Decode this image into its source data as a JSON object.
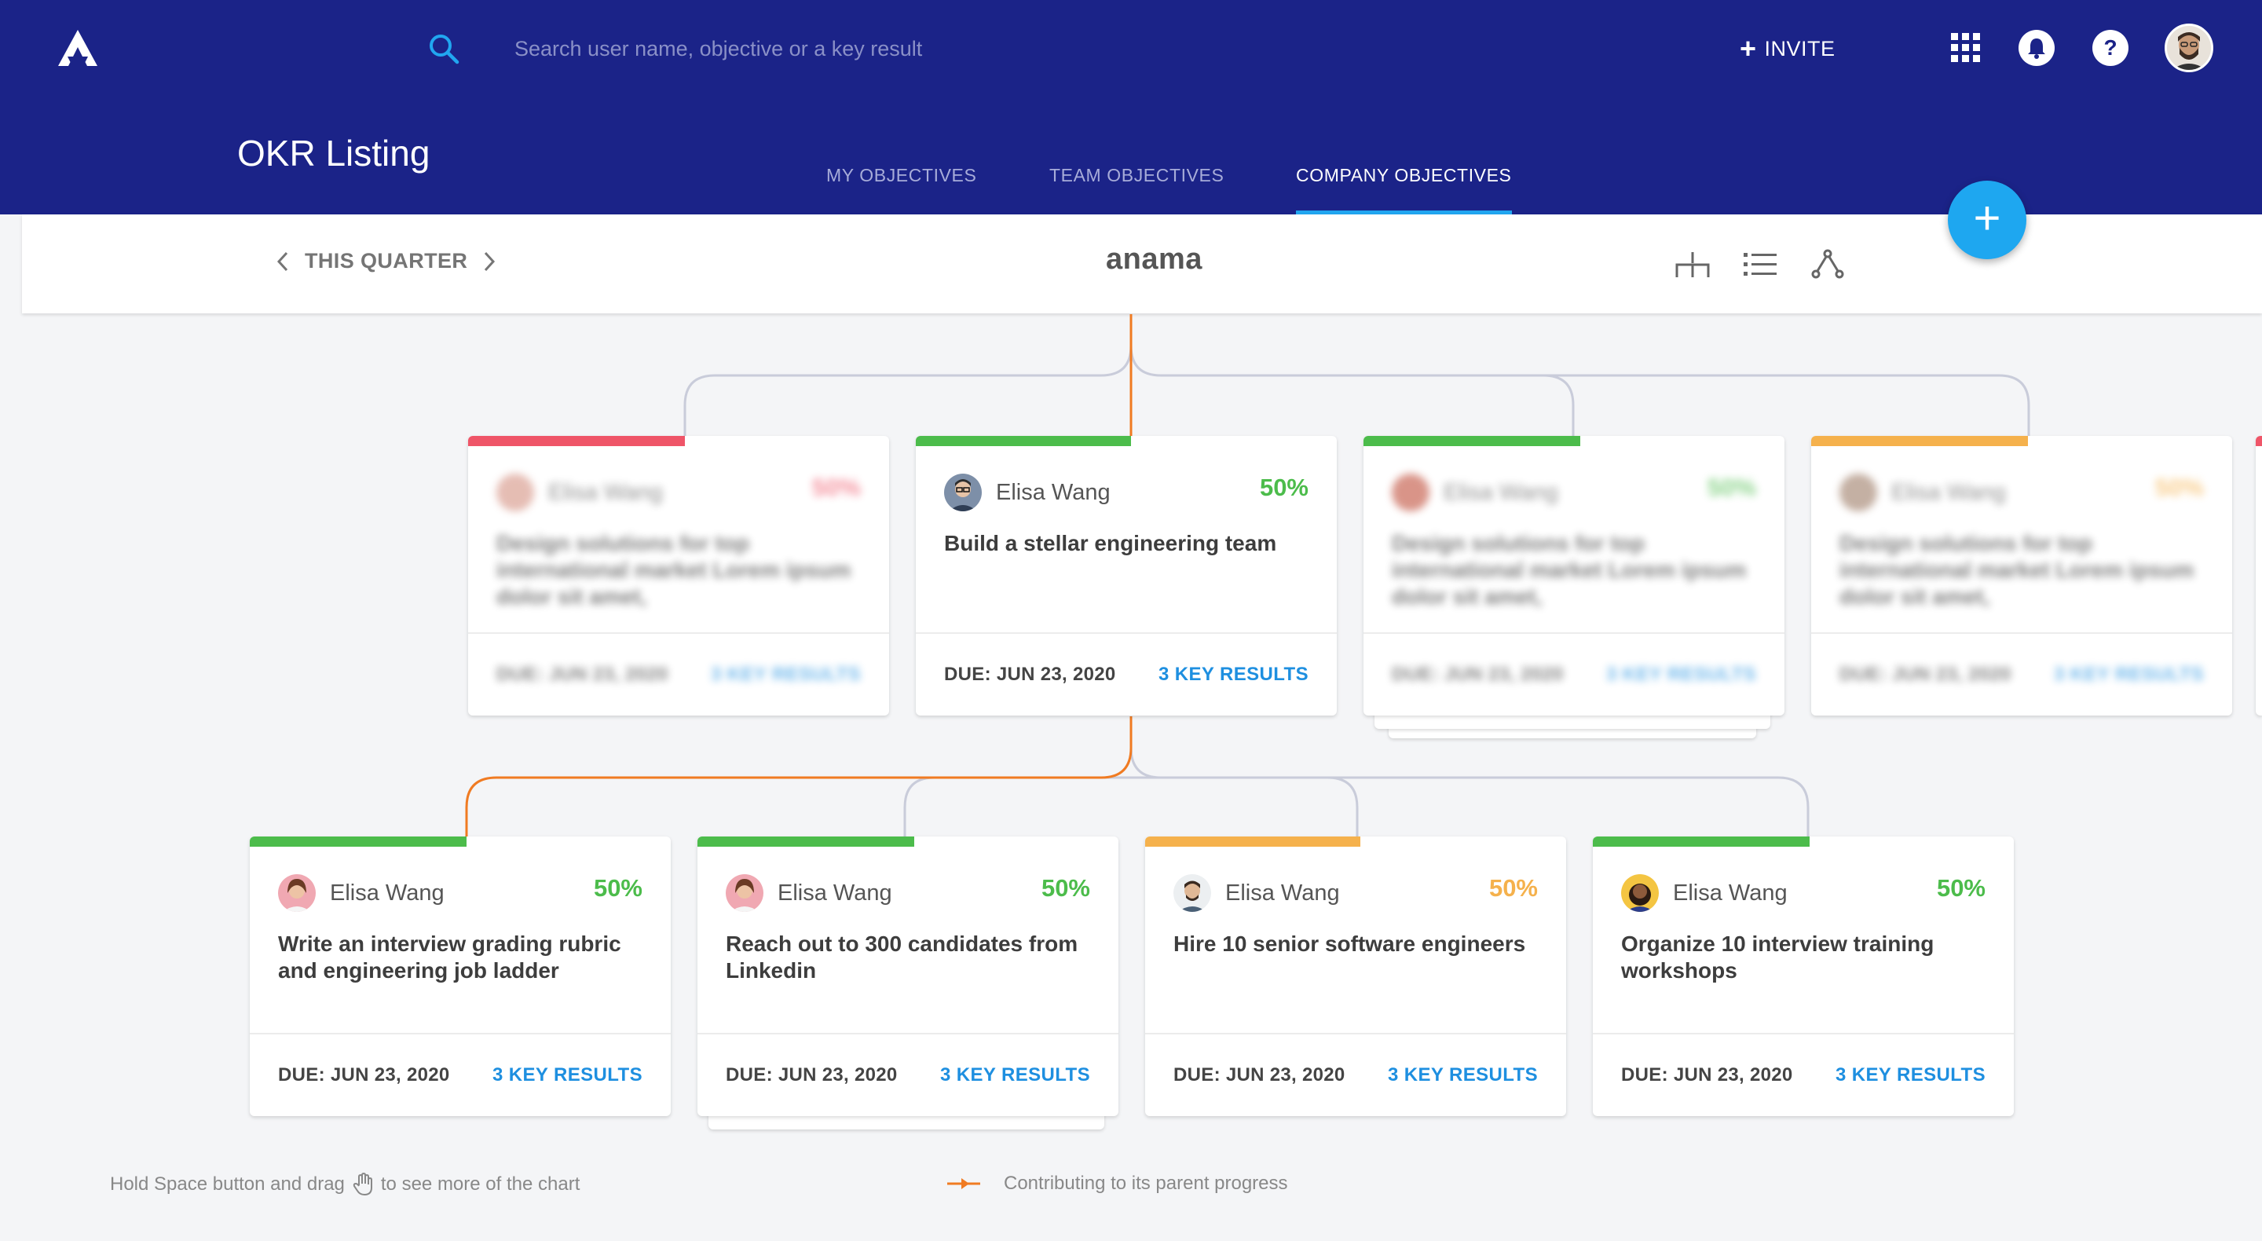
{
  "header": {
    "search_placeholder": "Search user name, objective or a key result",
    "invite_label": "INVITE",
    "page_title": "OKR Listing",
    "tabs": [
      {
        "label": "MY OBJECTIVES",
        "active": false
      },
      {
        "label": "TEAM OBJECTIVES",
        "active": false
      },
      {
        "label": "COMPANY OBJECTIVES",
        "active": true
      }
    ]
  },
  "toolbar": {
    "quarter_label": "THIS QUARTER",
    "center_title": "anama",
    "fab_label": "+"
  },
  "colors": {
    "header_bg": "#1b2388",
    "accent": "#1ea7f0",
    "green": "#4cbc4b",
    "red": "#ef5568",
    "amber": "#f5b14c",
    "connector_orange": "#f07b22",
    "connector_gray": "#c9ccda"
  },
  "level1": [
    {
      "owner": "Elisa Wang",
      "percent": "50%",
      "status": "red",
      "title": "Design solutions for top international market Lorem ipsum dolor sit amet,",
      "due": "DUE: JUN 23, 2020",
      "key_results": "3 KEY RESULTS",
      "blurred": true
    },
    {
      "owner": "Elisa Wang",
      "percent": "50%",
      "status": "green",
      "title": "Build a stellar engineering team",
      "due": "DUE: JUN 23, 2020",
      "key_results": "3 KEY RESULTS",
      "blurred": false
    },
    {
      "owner": "Elisa Wang",
      "percent": "50%",
      "status": "green",
      "title": "Design solutions for top international market Lorem ipsum dolor sit amet,",
      "due": "DUE: JUN 23, 2020",
      "key_results": "3 KEY RESULTS",
      "blurred": true
    },
    {
      "owner": "Elisa Wang",
      "percent": "50%",
      "status": "amber",
      "title": "Design solutions for top international market Lorem ipsum dolor sit amet,",
      "due": "DUE: JUN 23, 2020",
      "key_results": "3 KEY RESULTS",
      "blurred": true
    }
  ],
  "level2": [
    {
      "owner": "Elisa Wang",
      "percent": "50%",
      "status": "green",
      "title": "Write an interview grading rubric and engineering job ladder",
      "due": "DUE: JUN 23, 2020",
      "key_results": "3 KEY RESULTS"
    },
    {
      "owner": "Elisa Wang",
      "percent": "50%",
      "status": "green",
      "title": "Reach out to 300 candidates from Linkedin",
      "due": "DUE: JUN 23, 2020",
      "key_results": "3 KEY RESULTS"
    },
    {
      "owner": "Elisa Wang",
      "percent": "50%",
      "status": "amber",
      "title": "Hire 10 senior software engineers",
      "due": "DUE: JUN 23, 2020",
      "key_results": "3 KEY RESULTS"
    },
    {
      "owner": "Elisa Wang",
      "percent": "50%",
      "status": "green",
      "title": "Organize 10 interview training workshops",
      "due": "DUE: JUN 23, 2020",
      "key_results": "3 KEY RESULTS"
    }
  ],
  "footer": {
    "hint_before": "Hold Space button and drag",
    "hint_after": "to see more of the chart",
    "legend_label": "Contributing to its parent progress"
  }
}
